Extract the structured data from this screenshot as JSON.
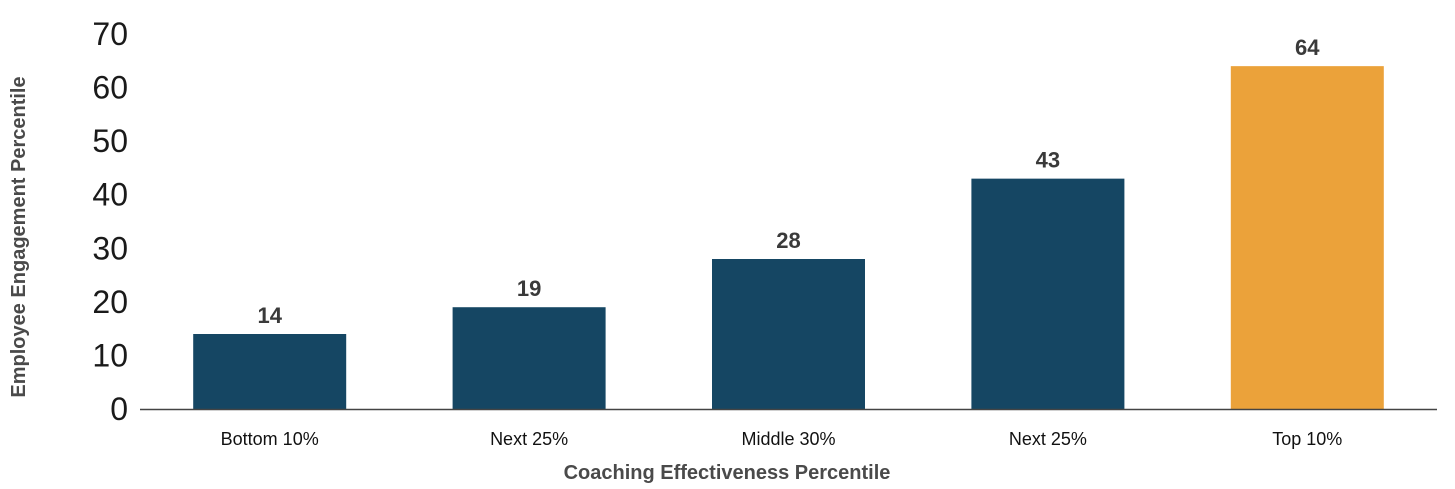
{
  "chart_data": {
    "type": "bar",
    "categories": [
      "Bottom 10%",
      "Next 25%",
      "Middle 30%",
      "Next 25%",
      "Top 10%"
    ],
    "values": [
      14,
      19,
      28,
      43,
      64
    ],
    "data_labels": [
      "14",
      "19",
      "28",
      "43",
      "64"
    ],
    "xlabel": "Coaching Effectiveness Percentile",
    "ylabel": "Employee Engagement Percentile",
    "ylim": [
      0,
      70
    ],
    "yticks": [
      "0",
      "10",
      "20",
      "30",
      "40",
      "50",
      "60",
      "70"
    ],
    "grid": false,
    "legend": "none",
    "colors": {
      "default_bar": "#154663",
      "highlight_bar": "#EBA23A",
      "axis_line": "#444444"
    },
    "highlight_index": 4
  }
}
